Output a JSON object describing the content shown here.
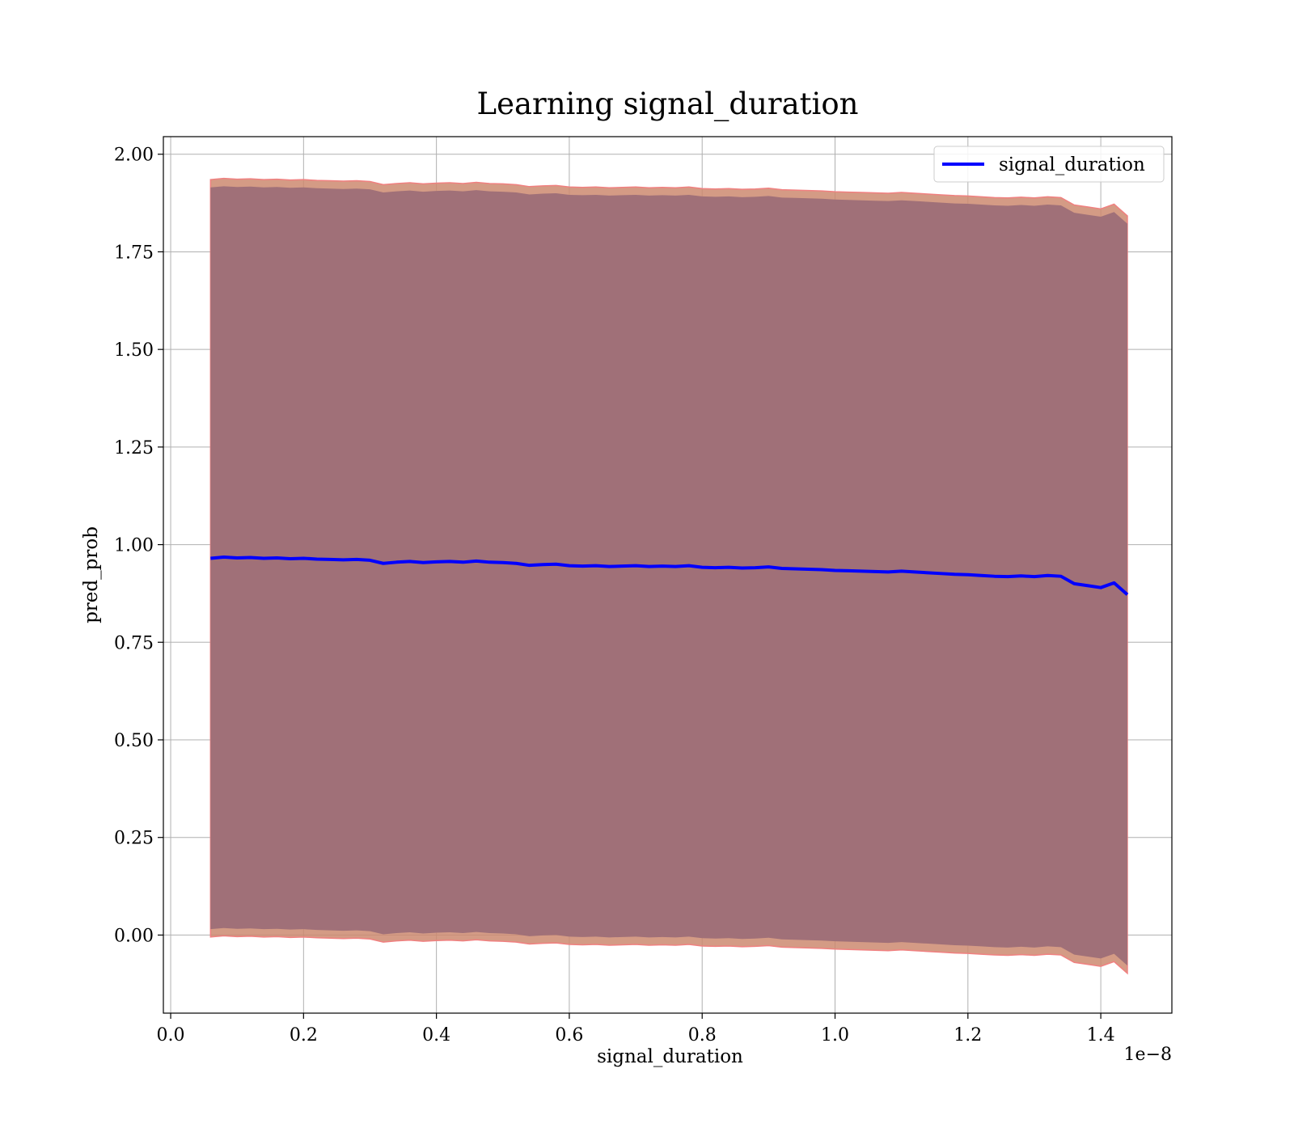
{
  "chart_data": {
    "type": "line",
    "title": "Learning signal_duration",
    "xlabel": "signal_duration",
    "ylabel": "pred_prob",
    "x_offset_label": "1e−8",
    "x_scale": 1e-08,
    "xlim": [
      -0.011,
      1.507
    ],
    "ylim": [
      -0.2,
      2.045
    ],
    "x_ticks": [
      0.0,
      0.2,
      0.4,
      0.6,
      0.8,
      1.0,
      1.2,
      1.4
    ],
    "x_tick_labels": [
      "0.0",
      "0.2",
      "0.4",
      "0.6",
      "0.8",
      "1.0",
      "1.2",
      "1.4"
    ],
    "y_ticks": [
      0.0,
      0.25,
      0.5,
      0.75,
      1.0,
      1.25,
      1.5,
      1.75,
      2.0
    ],
    "y_tick_labels": [
      "0.00",
      "0.25",
      "0.50",
      "0.75",
      "1.00",
      "1.25",
      "1.50",
      "1.75",
      "2.00"
    ],
    "grid": true,
    "legend_position": "top-right",
    "series": [
      {
        "name": "signal_duration",
        "color": "#0000ff",
        "x": [
          0.06,
          0.08,
          0.1,
          0.12,
          0.14,
          0.16,
          0.18,
          0.2,
          0.22,
          0.24,
          0.26,
          0.28,
          0.3,
          0.32,
          0.34,
          0.36,
          0.38,
          0.4,
          0.42,
          0.44,
          0.46,
          0.48,
          0.5,
          0.52,
          0.54,
          0.56,
          0.58,
          0.6,
          0.62,
          0.64,
          0.66,
          0.68,
          0.7,
          0.72,
          0.74,
          0.76,
          0.78,
          0.8,
          0.82,
          0.84,
          0.86,
          0.88,
          0.9,
          0.92,
          0.94,
          0.96,
          0.98,
          1.0,
          1.02,
          1.04,
          1.06,
          1.08,
          1.1,
          1.12,
          1.14,
          1.16,
          1.18,
          1.2,
          1.22,
          1.24,
          1.26,
          1.28,
          1.3,
          1.32,
          1.34,
          1.36,
          1.38,
          1.4,
          1.42,
          1.44
        ],
        "y": [
          0.965,
          0.968,
          0.966,
          0.967,
          0.965,
          0.966,
          0.964,
          0.965,
          0.963,
          0.962,
          0.961,
          0.962,
          0.96,
          0.952,
          0.955,
          0.957,
          0.954,
          0.956,
          0.957,
          0.955,
          0.958,
          0.955,
          0.954,
          0.952,
          0.947,
          0.949,
          0.95,
          0.946,
          0.945,
          0.946,
          0.944,
          0.945,
          0.946,
          0.944,
          0.945,
          0.944,
          0.946,
          0.942,
          0.941,
          0.942,
          0.94,
          0.941,
          0.943,
          0.939,
          0.938,
          0.937,
          0.936,
          0.934,
          0.933,
          0.932,
          0.931,
          0.93,
          0.932,
          0.93,
          0.928,
          0.926,
          0.924,
          0.923,
          0.921,
          0.919,
          0.918,
          0.92,
          0.918,
          0.921,
          0.919,
          0.9,
          0.895,
          0.89,
          0.902,
          0.872
        ],
        "band_outer_halfwidth": 0.97,
        "band_inner_halfwidth": 0.95
      }
    ],
    "colors": {
      "band_fill": "#a07078",
      "band_edge": "#cd8a70",
      "band_edge_line": "#f08080",
      "line": "#0000ff",
      "grid": "#b0b0b0"
    }
  }
}
